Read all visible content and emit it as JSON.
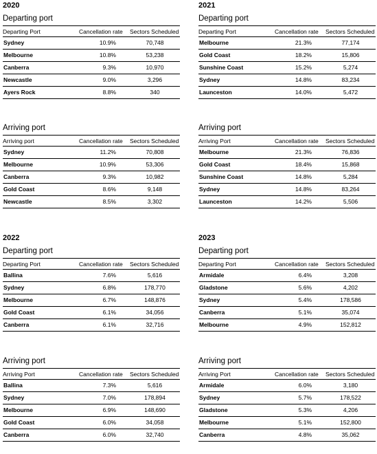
{
  "years": [
    {
      "year": "2020",
      "departing": {
        "title": "Departing port",
        "headers": [
          "Departing Port",
          "Cancellation rate",
          "Sectors Scheduled"
        ],
        "rows": [
          [
            "Sydney",
            "10.9%",
            "70,748"
          ],
          [
            "Melbourne",
            "10.8%",
            "53,238"
          ],
          [
            "Canberra",
            "9.3%",
            "10,970"
          ],
          [
            "Newcastle",
            "9.0%",
            "3,296"
          ],
          [
            "Ayers Rock",
            "8.8%",
            "340"
          ]
        ]
      },
      "arriving": {
        "title": "Arriving port",
        "headers": [
          "Arriving port",
          "Cancellation rate",
          "Sectors Scheduled"
        ],
        "rows": [
          [
            "Sydney",
            "11.2%",
            "70,808"
          ],
          [
            "Melbourne",
            "10.9%",
            "53,306"
          ],
          [
            "Canberra",
            "9.3%",
            "10,982"
          ],
          [
            "Gold Coast",
            "8.6%",
            "9,148"
          ],
          [
            "Newcastle",
            "8.5%",
            "3,302"
          ]
        ]
      }
    },
    {
      "year": "2021",
      "departing": {
        "title": "Departing port",
        "headers": [
          "Departing Port",
          "Cancellation rate",
          "Sectors Scheduled"
        ],
        "rows": [
          [
            "Melbourne",
            "21.3%",
            "77,174"
          ],
          [
            "Gold Coast",
            "18.2%",
            "15,806"
          ],
          [
            "Sunshine Coast",
            "15.2%",
            "5,274"
          ],
          [
            "Sydney",
            "14.8%",
            "83,234"
          ],
          [
            "Launceston",
            "14.0%",
            "5,472"
          ]
        ]
      },
      "arriving": {
        "title": "Arriving port",
        "headers": [
          "Arriving Port",
          "Cancellation rate",
          "Sectors Scheduled"
        ],
        "rows": [
          [
            "Melbourne",
            "21.3%",
            "76,836"
          ],
          [
            "Gold Coast",
            "18.4%",
            "15,868"
          ],
          [
            "Sunshine Coast",
            "14.8%",
            "5,284"
          ],
          [
            "Sydney",
            "14.8%",
            "83,264"
          ],
          [
            "Launceston",
            "14.2%",
            "5,506"
          ]
        ]
      }
    },
    {
      "year": "2022",
      "departing": {
        "title": "Departing port",
        "headers": [
          "Departing Port",
          "Cancellation rate",
          "Sectors Scheduled"
        ],
        "rows": [
          [
            "Ballina",
            "7.6%",
            "5,616"
          ],
          [
            "Sydney",
            "6.8%",
            "178,770"
          ],
          [
            "Melbourne",
            "6.7%",
            "148,876"
          ],
          [
            "Gold Coast",
            "6.1%",
            "34,056"
          ],
          [
            "Canberra",
            "6.1%",
            "32,716"
          ]
        ]
      },
      "arriving": {
        "title": "Arriving port",
        "headers": [
          "Arriving Port",
          "Cancellation rate",
          "Sectors Scheduled"
        ],
        "rows": [
          [
            "Ballina",
            "7.3%",
            "5,616"
          ],
          [
            "Sydney",
            "7.0%",
            "178,894"
          ],
          [
            "Melbourne",
            "6.9%",
            "148,690"
          ],
          [
            "Gold Coast",
            "6.0%",
            "34,058"
          ],
          [
            "Canberra",
            "6.0%",
            "32,740"
          ]
        ]
      }
    },
    {
      "year": "2023",
      "departing": {
        "title": "Departing port",
        "headers": [
          "Departing Port",
          "Cancellation rate",
          "Sectors Scheduled"
        ],
        "rows": [
          [
            "Armidale",
            "6.4%",
            "3,208"
          ],
          [
            "Gladstone",
            "5.6%",
            "4,202"
          ],
          [
            "Sydney",
            "5.4%",
            "178,586"
          ],
          [
            "Canberra",
            "5.1%",
            "35,074"
          ],
          [
            "Melbourne",
            "4.9%",
            "152,812"
          ]
        ]
      },
      "arriving": {
        "title": "Arriving port",
        "headers": [
          "Arriving Port",
          "Cancellation rate",
          "Sectors Scheduled"
        ],
        "rows": [
          [
            "Armidale",
            "6.0%",
            "3,180"
          ],
          [
            "Sydney",
            "5.7%",
            "178,522"
          ],
          [
            "Gladstone",
            "5.3%",
            "4,206"
          ],
          [
            "Melbourne",
            "5.1%",
            "152,800"
          ],
          [
            "Canberra",
            "4.8%",
            "35,062"
          ]
        ]
      }
    }
  ]
}
